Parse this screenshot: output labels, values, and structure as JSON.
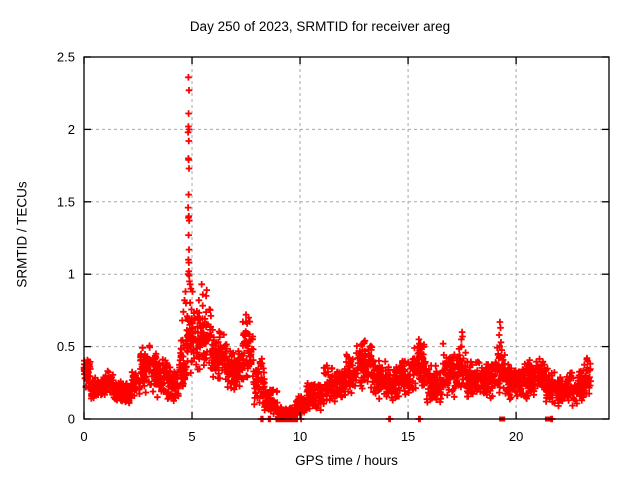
{
  "chart_data": {
    "type": "scatter",
    "title": "Day 250 of 2023, SRMTID for receiver areg",
    "xlabel": "GPS time / hours",
    "ylabel": "SRMTID / TECUs",
    "xlim": [
      0,
      24.3
    ],
    "ylim": [
      0,
      2.5
    ],
    "xticks": [
      0,
      5,
      10,
      15,
      20
    ],
    "xtick_labels": [
      "0",
      "5",
      "10",
      "15",
      "20"
    ],
    "yticks": [
      0,
      0.5,
      1,
      1.5,
      2,
      2.5
    ],
    "ytick_labels": [
      "0",
      "0.5",
      "1",
      "1.5",
      "2",
      "2.5"
    ],
    "grid": {
      "show": true,
      "style": "dashed",
      "color": "#a8a8a8"
    },
    "legend": "none",
    "marker": {
      "shape": "plus",
      "color": "#ff0000",
      "size": 7
    },
    "axis_color": "#000000",
    "seed": 20230905,
    "band_segments": [
      [
        0.0,
        0.3,
        0.18,
        0.42,
        40
      ],
      [
        0.3,
        0.9,
        0.13,
        0.3,
        70
      ],
      [
        0.9,
        1.35,
        0.15,
        0.37,
        55
      ],
      [
        1.35,
        2.2,
        0.1,
        0.28,
        100
      ],
      [
        2.2,
        2.6,
        0.14,
        0.34,
        50
      ],
      [
        2.6,
        3.35,
        0.18,
        0.52,
        90
      ],
      [
        3.35,
        3.85,
        0.14,
        0.42,
        60
      ],
      [
        3.85,
        4.4,
        0.1,
        0.36,
        65
      ],
      [
        4.4,
        4.75,
        0.15,
        0.6,
        45
      ],
      [
        4.75,
        5.2,
        0.3,
        0.85,
        55
      ],
      [
        5.2,
        5.9,
        0.3,
        0.8,
        80
      ],
      [
        5.9,
        6.6,
        0.25,
        0.62,
        85
      ],
      [
        6.6,
        7.35,
        0.18,
        0.5,
        85
      ],
      [
        7.35,
        7.85,
        0.25,
        0.72,
        55
      ],
      [
        7.85,
        8.35,
        0.08,
        0.42,
        55
      ],
      [
        8.35,
        8.95,
        0.02,
        0.22,
        65
      ],
      [
        8.95,
        9.75,
        0.0,
        0.09,
        90
      ],
      [
        9.75,
        10.3,
        0.01,
        0.17,
        60
      ],
      [
        10.3,
        11.1,
        0.05,
        0.26,
        90
      ],
      [
        11.1,
        12.1,
        0.12,
        0.38,
        110
      ],
      [
        12.1,
        12.6,
        0.17,
        0.45,
        55
      ],
      [
        12.6,
        13.35,
        0.2,
        0.55,
        85
      ],
      [
        13.35,
        14.1,
        0.13,
        0.42,
        85
      ],
      [
        14.1,
        14.7,
        0.1,
        0.38,
        65
      ],
      [
        14.7,
        15.25,
        0.15,
        0.45,
        60
      ],
      [
        15.25,
        15.85,
        0.18,
        0.55,
        65
      ],
      [
        15.85,
        16.6,
        0.1,
        0.38,
        85
      ],
      [
        16.6,
        17.35,
        0.15,
        0.47,
        85
      ],
      [
        17.35,
        17.7,
        0.2,
        0.55,
        40
      ],
      [
        17.7,
        19.05,
        0.13,
        0.42,
        150
      ],
      [
        19.05,
        19.5,
        0.15,
        0.55,
        50
      ],
      [
        19.5,
        20.6,
        0.12,
        0.4,
        120
      ],
      [
        20.6,
        21.35,
        0.15,
        0.42,
        85
      ],
      [
        21.35,
        21.9,
        0.08,
        0.38,
        60
      ],
      [
        21.9,
        22.7,
        0.08,
        0.33,
        90
      ],
      [
        22.7,
        23.15,
        0.1,
        0.35,
        50
      ],
      [
        23.15,
        23.45,
        0.15,
        0.42,
        35
      ]
    ],
    "outliers": [
      [
        4.83,
        2.36
      ],
      [
        4.86,
        2.27
      ],
      [
        4.84,
        2.11
      ],
      [
        4.83,
        2.02
      ],
      [
        4.86,
        2.0
      ],
      [
        4.82,
        1.98
      ],
      [
        4.85,
        1.92
      ],
      [
        4.83,
        1.8
      ],
      [
        4.84,
        1.79
      ],
      [
        4.86,
        1.73
      ],
      [
        4.84,
        1.55
      ],
      [
        4.82,
        1.46
      ],
      [
        4.85,
        1.4
      ],
      [
        4.83,
        1.39
      ],
      [
        4.87,
        1.37
      ],
      [
        4.84,
        1.27
      ],
      [
        4.86,
        1.17
      ],
      [
        4.83,
        1.1
      ],
      [
        4.85,
        1.08
      ],
      [
        4.85,
        1.02
      ],
      [
        4.82,
        1.0
      ],
      [
        4.87,
        0.99
      ],
      [
        4.88,
        0.95
      ],
      [
        4.91,
        0.93
      ],
      [
        4.95,
        0.9
      ],
      [
        5.02,
        0.88
      ],
      [
        5.32,
        0.82
      ],
      [
        5.45,
        0.93
      ],
      [
        5.5,
        0.86
      ],
      [
        5.65,
        0.85
      ],
      [
        5.68,
        0.89
      ],
      [
        4.55,
        0.68
      ],
      [
        4.6,
        0.74
      ],
      [
        4.65,
        0.82
      ],
      [
        4.7,
        0.88
      ],
      [
        4.72,
        0.8
      ],
      [
        7.5,
        0.72
      ],
      [
        7.55,
        0.66
      ],
      [
        7.62,
        0.7
      ],
      [
        12.9,
        0.52
      ],
      [
        13.0,
        0.54
      ],
      [
        15.48,
        0.5
      ],
      [
        15.5,
        0.55
      ],
      [
        15.52,
        0.52
      ],
      [
        16.62,
        0.52
      ],
      [
        17.47,
        0.55
      ],
      [
        17.5,
        0.6
      ],
      [
        17.52,
        0.57
      ],
      [
        19.22,
        0.58
      ],
      [
        19.25,
        0.67
      ],
      [
        19.28,
        0.63
      ],
      [
        19.3,
        0.53
      ],
      [
        23.28,
        0.42
      ],
      [
        23.32,
        0.4
      ]
    ],
    "zeros_plus": [
      8.2,
      8.27,
      8.55,
      8.62,
      8.9,
      8.93,
      8.97,
      9.0,
      9.03,
      9.07,
      9.1,
      9.13,
      9.17,
      9.2,
      9.27,
      9.33,
      9.4,
      9.47,
      9.53,
      9.6,
      9.67,
      9.73,
      9.8,
      9.87,
      10.05,
      14.12,
      14.17,
      15.5,
      15.55,
      21.62,
      21.67
    ],
    "zeros_square": [
      9.0,
      9.05,
      9.1,
      9.15,
      9.45,
      9.5,
      19.33,
      19.38,
      21.45,
      21.5
    ]
  }
}
